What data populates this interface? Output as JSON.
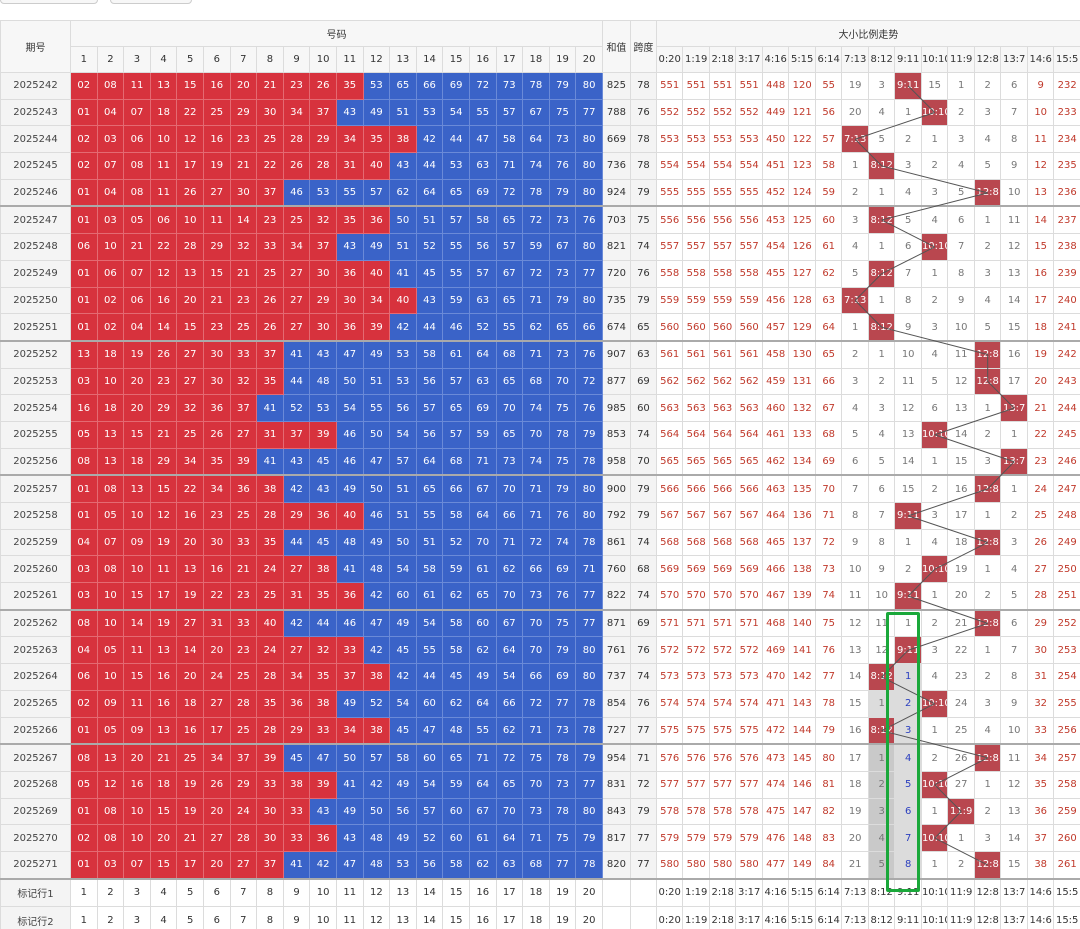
{
  "columns": {
    "issue": "期号",
    "numbers": "号码",
    "sum": "和值",
    "span": "跨度",
    "trend": "大小比例走势"
  },
  "number_headers": [
    "1",
    "2",
    "3",
    "4",
    "5",
    "6",
    "7",
    "8",
    "9",
    "10",
    "11",
    "12",
    "13",
    "14",
    "15",
    "16",
    "17",
    "18",
    "19",
    "20"
  ],
  "ratio_headers": [
    "0:20",
    "1:19",
    "2:18",
    "3:17",
    "4:16",
    "5:15",
    "6:14",
    "7:13",
    "8:12",
    "9:11",
    "10:10",
    "11:9",
    "12:8",
    "13:7",
    "14:6",
    "15:5"
  ],
  "rows": [
    {
      "issue": "2025242",
      "numbers": [
        "02",
        "08",
        "11",
        "13",
        "15",
        "16",
        "20",
        "21",
        "23",
        "26",
        "35",
        "53",
        "65",
        "66",
        "69",
        "72",
        "73",
        "78",
        "79",
        "80"
      ],
      "sum": 825,
      "span": 78,
      "trend": [
        551,
        551,
        551,
        551,
        448,
        120,
        55,
        19,
        3,
        "9:11",
        15,
        1,
        2,
        6,
        9,
        232
      ]
    },
    {
      "issue": "2025243",
      "numbers": [
        "01",
        "04",
        "07",
        "18",
        "22",
        "25",
        "29",
        "30",
        "34",
        "37",
        "43",
        "49",
        "51",
        "53",
        "54",
        "55",
        "57",
        "67",
        "75",
        "77"
      ],
      "sum": 788,
      "span": 76,
      "trend": [
        552,
        552,
        552,
        552,
        449,
        121,
        56,
        20,
        4,
        1,
        "10:10",
        2,
        3,
        7,
        10,
        233
      ]
    },
    {
      "issue": "2025244",
      "numbers": [
        "02",
        "03",
        "06",
        "10",
        "12",
        "16",
        "23",
        "25",
        "28",
        "29",
        "34",
        "35",
        "38",
        "42",
        "44",
        "47",
        "58",
        "64",
        "73",
        "80"
      ],
      "sum": 669,
      "span": 78,
      "trend": [
        553,
        553,
        553,
        553,
        450,
        122,
        57,
        "7:13",
        5,
        2,
        1,
        3,
        4,
        8,
        11,
        234
      ]
    },
    {
      "issue": "2025245",
      "numbers": [
        "02",
        "07",
        "08",
        "11",
        "17",
        "19",
        "21",
        "22",
        "26",
        "28",
        "31",
        "40",
        "43",
        "44",
        "53",
        "63",
        "71",
        "74",
        "76",
        "80"
      ],
      "sum": 736,
      "span": 78,
      "trend": [
        554,
        554,
        554,
        554,
        451,
        123,
        58,
        1,
        "8:12",
        3,
        2,
        4,
        5,
        9,
        12,
        235
      ]
    },
    {
      "issue": "2025246",
      "numbers": [
        "01",
        "04",
        "08",
        "11",
        "26",
        "27",
        "30",
        "37",
        "46",
        "53",
        "55",
        "57",
        "62",
        "64",
        "65",
        "69",
        "72",
        "78",
        "79",
        "80"
      ],
      "sum": 924,
      "span": 79,
      "trend": [
        555,
        555,
        555,
        555,
        452,
        124,
        59,
        2,
        1,
        4,
        3,
        5,
        "12:8",
        10,
        13,
        236
      ]
    },
    {
      "issue": "2025247",
      "numbers": [
        "01",
        "03",
        "05",
        "06",
        "10",
        "11",
        "14",
        "23",
        "25",
        "32",
        "35",
        "36",
        "50",
        "51",
        "57",
        "58",
        "65",
        "72",
        "73",
        "76"
      ],
      "sum": 703,
      "span": 75,
      "trend": [
        556,
        556,
        556,
        556,
        453,
        125,
        60,
        3,
        "8:12",
        5,
        4,
        6,
        1,
        11,
        14,
        237
      ]
    },
    {
      "issue": "2025248",
      "numbers": [
        "06",
        "10",
        "21",
        "22",
        "28",
        "29",
        "32",
        "33",
        "34",
        "37",
        "43",
        "49",
        "51",
        "52",
        "55",
        "56",
        "57",
        "59",
        "67",
        "80"
      ],
      "sum": 821,
      "span": 74,
      "trend": [
        557,
        557,
        557,
        557,
        454,
        126,
        61,
        4,
        1,
        6,
        "10:10",
        7,
        2,
        12,
        15,
        238
      ]
    },
    {
      "issue": "2025249",
      "numbers": [
        "01",
        "06",
        "07",
        "12",
        "13",
        "15",
        "21",
        "25",
        "27",
        "30",
        "36",
        "40",
        "41",
        "45",
        "55",
        "57",
        "67",
        "72",
        "73",
        "77"
      ],
      "sum": 720,
      "span": 76,
      "trend": [
        558,
        558,
        558,
        558,
        455,
        127,
        62,
        5,
        "8:12",
        7,
        1,
        8,
        3,
        13,
        16,
        239
      ]
    },
    {
      "issue": "2025250",
      "numbers": [
        "01",
        "02",
        "06",
        "16",
        "20",
        "21",
        "23",
        "26",
        "27",
        "29",
        "30",
        "34",
        "40",
        "43",
        "59",
        "63",
        "65",
        "71",
        "79",
        "80"
      ],
      "sum": 735,
      "span": 79,
      "trend": [
        559,
        559,
        559,
        559,
        456,
        128,
        63,
        "7:13",
        1,
        8,
        2,
        9,
        4,
        14,
        17,
        240
      ]
    },
    {
      "issue": "2025251",
      "numbers": [
        "01",
        "02",
        "04",
        "14",
        "15",
        "23",
        "25",
        "26",
        "27",
        "30",
        "36",
        "39",
        "42",
        "44",
        "46",
        "52",
        "55",
        "62",
        "65",
        "66"
      ],
      "sum": 674,
      "span": 65,
      "trend": [
        560,
        560,
        560,
        560,
        457,
        129,
        64,
        1,
        "8:12",
        9,
        3,
        10,
        5,
        15,
        18,
        241
      ]
    },
    {
      "issue": "2025252",
      "numbers": [
        "13",
        "18",
        "19",
        "26",
        "27",
        "30",
        "33",
        "37",
        "41",
        "43",
        "47",
        "49",
        "53",
        "58",
        "61",
        "64",
        "68",
        "71",
        "73",
        "76"
      ],
      "sum": 907,
      "span": 63,
      "trend": [
        561,
        561,
        561,
        561,
        458,
        130,
        65,
        2,
        1,
        10,
        4,
        11,
        "12:8",
        16,
        19,
        242
      ]
    },
    {
      "issue": "2025253",
      "numbers": [
        "03",
        "10",
        "20",
        "23",
        "27",
        "30",
        "32",
        "35",
        "44",
        "48",
        "50",
        "51",
        "53",
        "56",
        "57",
        "63",
        "65",
        "68",
        "70",
        "72"
      ],
      "sum": 877,
      "span": 69,
      "trend": [
        562,
        562,
        562,
        562,
        459,
        131,
        66,
        3,
        2,
        11,
        5,
        12,
        "12:8",
        17,
        20,
        243
      ]
    },
    {
      "issue": "2025254",
      "numbers": [
        "16",
        "18",
        "20",
        "29",
        "32",
        "36",
        "37",
        "41",
        "52",
        "53",
        "54",
        "55",
        "56",
        "57",
        "65",
        "69",
        "70",
        "74",
        "75",
        "76"
      ],
      "sum": 985,
      "span": 60,
      "trend": [
        563,
        563,
        563,
        563,
        460,
        132,
        67,
        4,
        3,
        12,
        6,
        13,
        1,
        "13:7",
        21,
        244
      ]
    },
    {
      "issue": "2025255",
      "numbers": [
        "05",
        "13",
        "15",
        "21",
        "25",
        "26",
        "27",
        "31",
        "37",
        "39",
        "46",
        "50",
        "54",
        "56",
        "57",
        "59",
        "65",
        "70",
        "78",
        "79"
      ],
      "sum": 853,
      "span": 74,
      "trend": [
        564,
        564,
        564,
        564,
        461,
        133,
        68,
        5,
        4,
        13,
        "10:10",
        14,
        2,
        1,
        22,
        245
      ]
    },
    {
      "issue": "2025256",
      "numbers": [
        "08",
        "13",
        "18",
        "29",
        "34",
        "35",
        "39",
        "41",
        "43",
        "45",
        "46",
        "47",
        "57",
        "64",
        "68",
        "71",
        "73",
        "74",
        "75",
        "78"
      ],
      "sum": 958,
      "span": 70,
      "trend": [
        565,
        565,
        565,
        565,
        462,
        134,
        69,
        6,
        5,
        14,
        1,
        15,
        3,
        "13:7",
        23,
        246
      ]
    },
    {
      "issue": "2025257",
      "numbers": [
        "01",
        "08",
        "13",
        "15",
        "22",
        "34",
        "36",
        "38",
        "42",
        "43",
        "49",
        "50",
        "51",
        "65",
        "66",
        "67",
        "70",
        "71",
        "79",
        "80"
      ],
      "sum": 900,
      "span": 79,
      "trend": [
        566,
        566,
        566,
        566,
        463,
        135,
        70,
        7,
        6,
        15,
        2,
        16,
        "12:8",
        1,
        24,
        247
      ]
    },
    {
      "issue": "2025258",
      "numbers": [
        "01",
        "05",
        "10",
        "12",
        "16",
        "23",
        "25",
        "28",
        "29",
        "36",
        "40",
        "46",
        "51",
        "55",
        "58",
        "64",
        "66",
        "71",
        "76",
        "80"
      ],
      "sum": 792,
      "span": 79,
      "trend": [
        567,
        567,
        567,
        567,
        464,
        136,
        71,
        8,
        7,
        "9:11",
        3,
        17,
        1,
        2,
        25,
        248
      ]
    },
    {
      "issue": "2025259",
      "numbers": [
        "04",
        "07",
        "09",
        "19",
        "20",
        "30",
        "33",
        "35",
        "44",
        "45",
        "48",
        "49",
        "50",
        "51",
        "52",
        "70",
        "71",
        "72",
        "74",
        "78"
      ],
      "sum": 861,
      "span": 74,
      "trend": [
        568,
        568,
        568,
        568,
        465,
        137,
        72,
        9,
        8,
        1,
        4,
        18,
        "12:8",
        3,
        26,
        249
      ]
    },
    {
      "issue": "2025260",
      "numbers": [
        "03",
        "08",
        "10",
        "11",
        "13",
        "16",
        "21",
        "24",
        "27",
        "38",
        "41",
        "48",
        "54",
        "58",
        "59",
        "61",
        "62",
        "66",
        "69",
        "71"
      ],
      "sum": 760,
      "span": 68,
      "trend": [
        569,
        569,
        569,
        569,
        466,
        138,
        73,
        10,
        9,
        2,
        "10:10",
        19,
        1,
        4,
        27,
        250
      ]
    },
    {
      "issue": "2025261",
      "numbers": [
        "03",
        "10",
        "15",
        "17",
        "19",
        "22",
        "23",
        "25",
        "31",
        "35",
        "36",
        "42",
        "60",
        "61",
        "62",
        "65",
        "70",
        "73",
        "76",
        "77"
      ],
      "sum": 822,
      "span": 74,
      "trend": [
        570,
        570,
        570,
        570,
        467,
        139,
        74,
        11,
        10,
        "9:11",
        1,
        20,
        2,
        5,
        28,
        251
      ]
    },
    {
      "issue": "2025262",
      "numbers": [
        "08",
        "10",
        "14",
        "19",
        "27",
        "31",
        "33",
        "40",
        "42",
        "44",
        "46",
        "47",
        "49",
        "54",
        "58",
        "60",
        "67",
        "70",
        "75",
        "77"
      ],
      "sum": 871,
      "span": 69,
      "trend": [
        571,
        571,
        571,
        571,
        468,
        140,
        75,
        12,
        11,
        1,
        2,
        21,
        "12:8",
        6,
        29,
        252
      ]
    },
    {
      "issue": "2025263",
      "numbers": [
        "04",
        "05",
        "11",
        "13",
        "14",
        "20",
        "23",
        "24",
        "27",
        "32",
        "33",
        "42",
        "45",
        "55",
        "58",
        "62",
        "64",
        "70",
        "79",
        "80"
      ],
      "sum": 761,
      "span": 76,
      "trend": [
        572,
        572,
        572,
        572,
        469,
        141,
        76,
        13,
        12,
        "9:11",
        3,
        22,
        1,
        7,
        30,
        253
      ]
    },
    {
      "issue": "2025264",
      "numbers": [
        "06",
        "10",
        "15",
        "16",
        "20",
        "24",
        "25",
        "28",
        "34",
        "35",
        "37",
        "38",
        "42",
        "44",
        "45",
        "49",
        "54",
        "66",
        "69",
        "80"
      ],
      "sum": 737,
      "span": 74,
      "trend": [
        573,
        573,
        573,
        573,
        470,
        142,
        77,
        14,
        "8:12",
        1,
        4,
        23,
        2,
        8,
        31,
        254
      ]
    },
    {
      "issue": "2025265",
      "numbers": [
        "02",
        "09",
        "11",
        "16",
        "18",
        "27",
        "28",
        "35",
        "36",
        "38",
        "49",
        "52",
        "54",
        "60",
        "62",
        "64",
        "66",
        "72",
        "77",
        "78"
      ],
      "sum": 854,
      "span": 76,
      "trend": [
        574,
        574,
        574,
        574,
        471,
        143,
        78,
        15,
        1,
        2,
        "10:10",
        24,
        3,
        9,
        32,
        255
      ]
    },
    {
      "issue": "2025266",
      "numbers": [
        "01",
        "05",
        "09",
        "13",
        "16",
        "17",
        "25",
        "28",
        "29",
        "33",
        "34",
        "38",
        "45",
        "47",
        "48",
        "55",
        "62",
        "71",
        "73",
        "78"
      ],
      "sum": 727,
      "span": 77,
      "trend": [
        575,
        575,
        575,
        575,
        472,
        144,
        79,
        16,
        "8:12",
        3,
        1,
        25,
        4,
        10,
        33,
        256
      ]
    },
    {
      "issue": "2025267",
      "numbers": [
        "08",
        "13",
        "20",
        "21",
        "25",
        "34",
        "37",
        "39",
        "45",
        "47",
        "50",
        "57",
        "58",
        "60",
        "65",
        "71",
        "72",
        "75",
        "78",
        "79"
      ],
      "sum": 954,
      "span": 71,
      "trend": [
        576,
        576,
        576,
        576,
        473,
        145,
        80,
        17,
        1,
        4,
        2,
        26,
        "12:8",
        11,
        34,
        257
      ]
    },
    {
      "issue": "2025268",
      "numbers": [
        "05",
        "12",
        "16",
        "18",
        "19",
        "26",
        "29",
        "33",
        "38",
        "39",
        "41",
        "42",
        "49",
        "54",
        "59",
        "64",
        "65",
        "70",
        "73",
        "77"
      ],
      "sum": 831,
      "span": 72,
      "trend": [
        577,
        577,
        577,
        577,
        474,
        146,
        81,
        18,
        2,
        5,
        "10:10",
        27,
        1,
        12,
        35,
        258
      ]
    },
    {
      "issue": "2025269",
      "numbers": [
        "01",
        "08",
        "10",
        "15",
        "19",
        "20",
        "24",
        "30",
        "33",
        "43",
        "49",
        "50",
        "56",
        "57",
        "60",
        "67",
        "70",
        "73",
        "78",
        "80"
      ],
      "sum": 843,
      "span": 79,
      "trend": [
        578,
        578,
        578,
        578,
        475,
        147,
        82,
        19,
        3,
        6,
        1,
        "11:9",
        2,
        13,
        36,
        259
      ]
    },
    {
      "issue": "2025270",
      "numbers": [
        "02",
        "08",
        "10",
        "20",
        "21",
        "27",
        "28",
        "30",
        "33",
        "36",
        "43",
        "48",
        "49",
        "52",
        "60",
        "61",
        "64",
        "71",
        "75",
        "79"
      ],
      "sum": 817,
      "span": 77,
      "trend": [
        579,
        579,
        579,
        579,
        476,
        148,
        83,
        20,
        4,
        7,
        "10:10",
        1,
        3,
        14,
        37,
        260
      ]
    },
    {
      "issue": "2025271",
      "numbers": [
        "01",
        "03",
        "07",
        "15",
        "17",
        "20",
        "27",
        "37",
        "41",
        "42",
        "47",
        "48",
        "53",
        "56",
        "58",
        "62",
        "63",
        "68",
        "77",
        "78"
      ],
      "sum": 820,
      "span": 77,
      "trend": [
        580,
        580,
        580,
        580,
        477,
        149,
        84,
        21,
        5,
        8,
        1,
        2,
        "12:8",
        15,
        38,
        261
      ]
    }
  ],
  "marker_rows": [
    {
      "label": "标记行1",
      "numbers": [
        "1",
        "2",
        "3",
        "4",
        "5",
        "6",
        "7",
        "8",
        "9",
        "10",
        "11",
        "12",
        "13",
        "14",
        "15",
        "16",
        "17",
        "18",
        "19",
        "20"
      ],
      "ratios": [
        "0:20",
        "1:19",
        "2:18",
        "3:17",
        "4:16",
        "5:15",
        "6:14",
        "7:13",
        "8:12",
        "9:11",
        "10:10",
        "11:9",
        "12:8",
        "13:7",
        "14:6",
        "15:5"
      ]
    },
    {
      "label": "标记行2",
      "numbers": [
        "1",
        "2",
        "3",
        "4",
        "5",
        "6",
        "7",
        "8",
        "9",
        "10",
        "11",
        "12",
        "13",
        "14",
        "15",
        "16",
        "17",
        "18",
        "19",
        "20"
      ],
      "ratios": [
        "0:20",
        "1:19",
        "2:18",
        "3:17",
        "4:16",
        "5:15",
        "6:14",
        "7:13",
        "8:12",
        "9:11",
        "10:10",
        "11:9",
        "12:8",
        "13:7",
        "14:6",
        "15:5"
      ]
    }
  ]
}
